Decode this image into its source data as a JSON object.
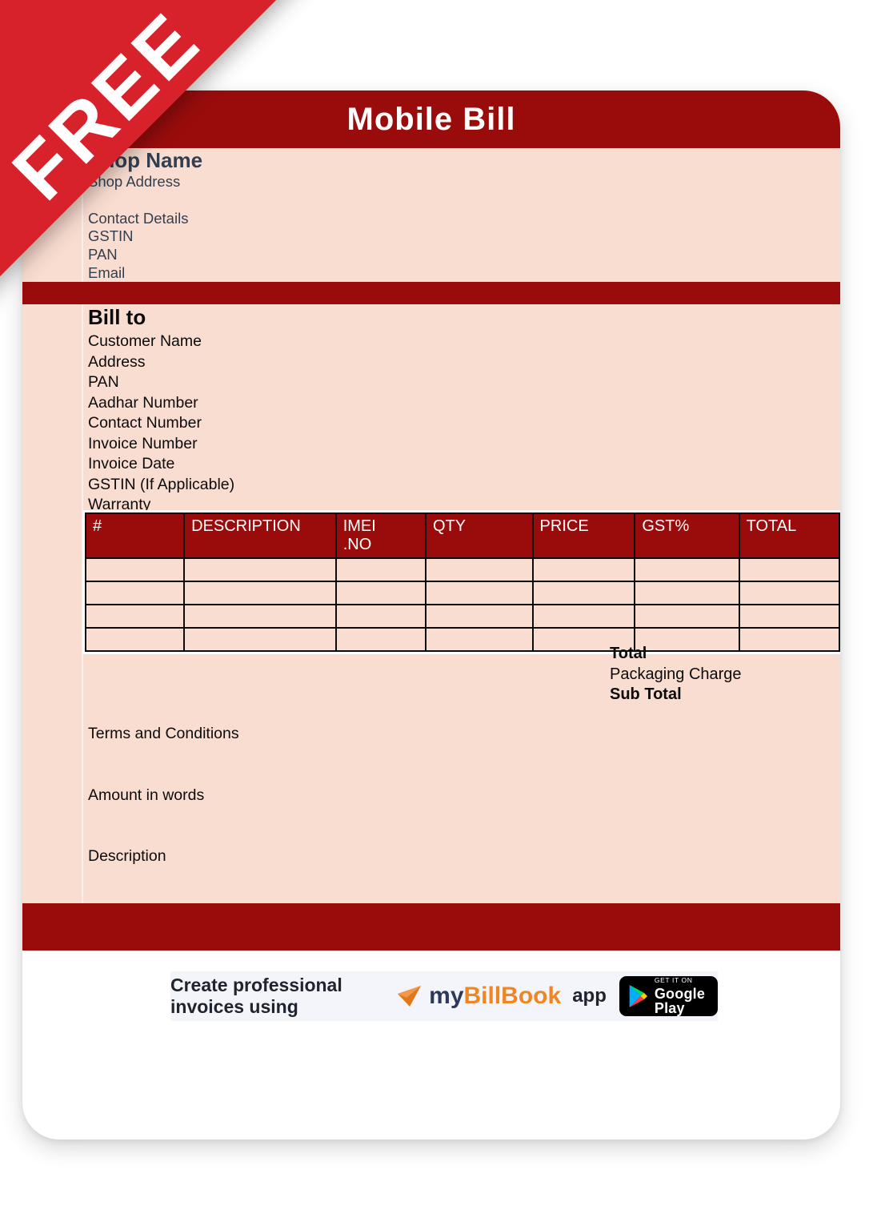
{
  "ribbon": {
    "label": "FREE"
  },
  "header": {
    "title": "Mobile Bill"
  },
  "shop": {
    "name": "Shop Name",
    "lines": [
      "Shop Address",
      "",
      "Contact Details",
      "GSTIN",
      "PAN",
      "Email"
    ]
  },
  "bill_to": {
    "title": "Bill to",
    "lines": [
      "Customer Name",
      "Address",
      "PAN",
      "Aadhar Number",
      "Contact Number",
      "Invoice Number",
      "Invoice Date",
      "GSTIN (If Applicable)",
      "Warranty"
    ]
  },
  "items_table": {
    "columns": [
      "#",
      "DESCRIPTION",
      "IMEI\n.NO",
      "QTY",
      "PRICE",
      "GST%",
      "TOTAL"
    ],
    "empty_rows": 4
  },
  "totals": {
    "rows": [
      {
        "label": "Total",
        "bold": true
      },
      {
        "label": "Packaging Charge",
        "bold": false
      },
      {
        "label": "Sub Total",
        "bold": true
      }
    ]
  },
  "sections": {
    "terms": "Terms and Conditions",
    "amount_in_words": "Amount in words",
    "description": "Description"
  },
  "promo": {
    "text": "Create professional invoices using",
    "brand_my": "my",
    "brand_billbook": "BillBook",
    "suffix": "app",
    "badge": {
      "line1": "GET IT ON",
      "line2": "Google Play"
    }
  },
  "colors": {
    "ribbon_red": "#D7222B",
    "bar_dark_red": "#9A0C0C",
    "content_peach": "#FADDD1",
    "shop_text": "#333F4F",
    "brand_navy": "#2C3A5A",
    "brand_orange": "#F08621",
    "promo_bg": "#F4F5FA",
    "badge_bg": "#000000"
  }
}
